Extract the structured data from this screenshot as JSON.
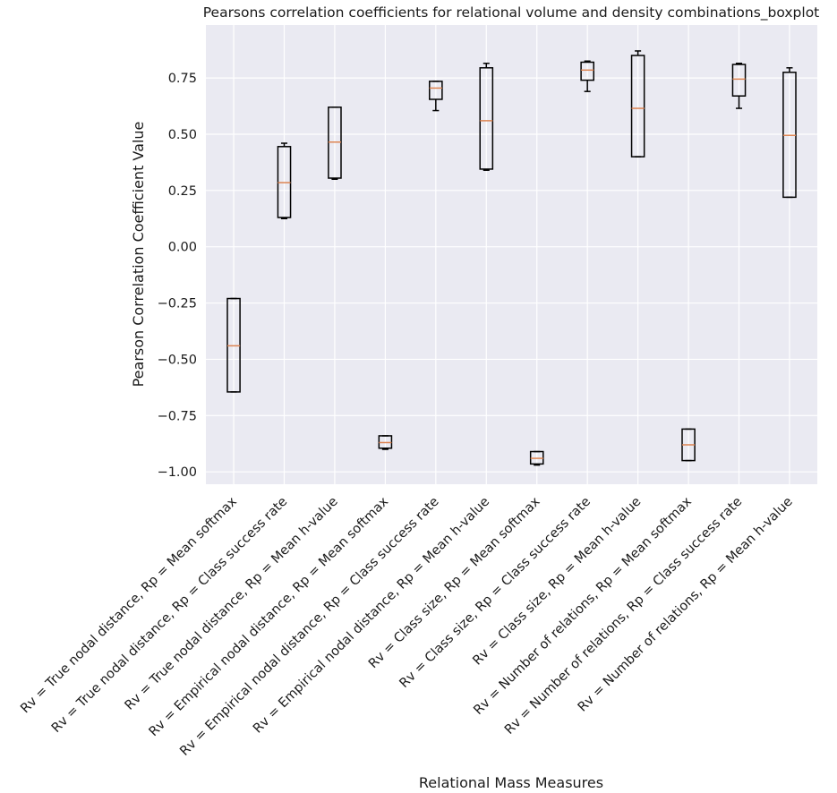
{
  "chart_data": {
    "type": "boxplot",
    "title": "Pearsons correlation coefficients for relational volume and density combinations_boxplot",
    "xlabel": "Relational Mass Measures",
    "ylabel": "Pearson Correlation Coefficient Value",
    "ylim": [
      -1.055,
      0.985
    ],
    "yticks": [
      -1.0,
      -0.75,
      -0.5,
      -0.25,
      0.0,
      0.25,
      0.5,
      0.75
    ],
    "ytick_labels": [
      "−1.00",
      "−0.75",
      "−0.50",
      "−0.25",
      "0.00",
      "0.25",
      "0.50",
      "0.75"
    ],
    "grid": true,
    "colors": {
      "background": "#eaeaf2",
      "grid": "#ffffff",
      "box": "#000000",
      "median": "#dd8452"
    },
    "categories": [
      "Rv = True nodal distance, Rp = Mean softmax",
      "Rv = True nodal distance, Rp = Class success rate",
      "Rv = True nodal distance, Rp = Mean h-value",
      "Rv = Empirical nodal distance, Rp = Mean softmax",
      "Rv = Empirical nodal distance, Rp = Class success rate",
      "Rv = Empirical nodal distance, Rp = Mean h-value",
      "Rv = Class size, Rp = Mean softmax",
      "Rv = Class size, Rp = Class success rate",
      "Rv = Class size, Rp = Mean h-value",
      "Rv = Number of relations, Rp = Mean softmax",
      "Rv = Number of relations, Rp = Class success rate",
      "Rv = Number of relations, Rp = Mean h-value"
    ],
    "boxes": [
      {
        "whislo": -0.645,
        "q1": -0.645,
        "med": -0.44,
        "q3": -0.23,
        "whishi": -0.23
      },
      {
        "whislo": 0.125,
        "q1": 0.13,
        "med": 0.285,
        "q3": 0.445,
        "whishi": 0.46
      },
      {
        "whislo": 0.3,
        "q1": 0.305,
        "med": 0.465,
        "q3": 0.62,
        "whishi": 0.62
      },
      {
        "whislo": -0.9,
        "q1": -0.895,
        "med": -0.87,
        "q3": -0.84,
        "whishi": -0.84
      },
      {
        "whislo": 0.605,
        "q1": 0.655,
        "med": 0.705,
        "q3": 0.735,
        "whishi": 0.735
      },
      {
        "whislo": 0.34,
        "q1": 0.345,
        "med": 0.56,
        "q3": 0.795,
        "whishi": 0.815
      },
      {
        "whislo": -0.97,
        "q1": -0.965,
        "med": -0.94,
        "q3": -0.91,
        "whishi": -0.91
      },
      {
        "whislo": 0.69,
        "q1": 0.74,
        "med": 0.785,
        "q3": 0.82,
        "whishi": 0.825
      },
      {
        "whislo": 0.4,
        "q1": 0.4,
        "med": 0.615,
        "q3": 0.85,
        "whishi": 0.87
      },
      {
        "whislo": -0.95,
        "q1": -0.95,
        "med": -0.88,
        "q3": -0.81,
        "whishi": -0.81
      },
      {
        "whislo": 0.615,
        "q1": 0.67,
        "med": 0.745,
        "q3": 0.81,
        "whishi": 0.815
      },
      {
        "whislo": 0.22,
        "q1": 0.22,
        "med": 0.495,
        "q3": 0.775,
        "whishi": 0.795
      }
    ]
  }
}
